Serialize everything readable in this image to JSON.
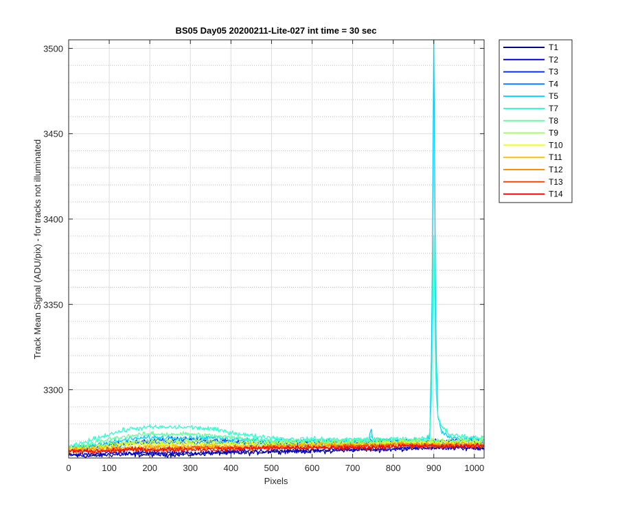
{
  "chart_data": {
    "type": "line",
    "title": "BS05 Day05 20200211-Lite-027 int time = 30 sec",
    "xlabel": "Pixels",
    "ylabel": "Track Mean Signal (ADU/pix) - for tracks not illuminated",
    "xlim": [
      0,
      1024
    ],
    "ylim": [
      3260,
      3505
    ],
    "xticks": [
      0,
      100,
      200,
      300,
      400,
      500,
      600,
      700,
      800,
      900,
      1000
    ],
    "yticks": [
      3300,
      3350,
      3400,
      3450,
      3500
    ],
    "grid": true,
    "minor_grid_y": true,
    "legend_position": "outside-top-right",
    "x_profile": [
      0,
      50,
      100,
      150,
      200,
      250,
      300,
      350,
      400,
      450,
      500,
      550,
      600,
      650,
      700,
      740,
      745,
      750,
      800,
      850,
      880,
      890,
      895,
      900,
      905,
      910,
      920,
      940,
      960,
      1000,
      1024
    ],
    "series": [
      {
        "name": "T1",
        "color": "#00008F",
        "values": [
          3262,
          3261,
          3262,
          3262,
          3262,
          3262,
          3262,
          3263,
          3263,
          3263,
          3264,
          3264,
          3264,
          3264,
          3265,
          3265,
          3265,
          3265,
          3265,
          3266,
          3266,
          3266,
          3266,
          3266,
          3266,
          3266,
          3266,
          3266,
          3266,
          3266,
          3266
        ]
      },
      {
        "name": "T2",
        "color": "#0000DF",
        "values": [
          3262,
          3262,
          3263,
          3263,
          3263,
          3263,
          3263,
          3263,
          3264,
          3264,
          3264,
          3264,
          3264,
          3265,
          3265,
          3265,
          3265,
          3265,
          3265,
          3266,
          3266,
          3266,
          3266,
          3266,
          3266,
          3266,
          3266,
          3266,
          3266,
          3266,
          3266
        ]
      },
      {
        "name": "T3",
        "color": "#0030FF",
        "values": [
          3266,
          3267,
          3268,
          3269,
          3270,
          3271,
          3271,
          3270,
          3270,
          3269,
          3269,
          3269,
          3269,
          3269,
          3269,
          3269,
          3270,
          3270,
          3270,
          3270,
          3270,
          3270,
          3270,
          3270,
          3270,
          3270,
          3270,
          3270,
          3270,
          3270,
          3270
        ]
      },
      {
        "name": "T4",
        "color": "#0080FF",
        "values": [
          3265,
          3266,
          3267,
          3268,
          3269,
          3269,
          3269,
          3269,
          3269,
          3268,
          3268,
          3268,
          3268,
          3268,
          3268,
          3268,
          3270,
          3268,
          3268,
          3268,
          3268,
          3268,
          3268,
          3268,
          3268,
          3268,
          3268,
          3268,
          3268,
          3268,
          3268
        ]
      },
      {
        "name": "T5",
        "color": "#00CFFF",
        "values": [
          3265,
          3267,
          3269,
          3271,
          3272,
          3272,
          3272,
          3272,
          3271,
          3271,
          3270,
          3270,
          3270,
          3270,
          3270,
          3270,
          3277,
          3271,
          3270,
          3270,
          3270,
          3272,
          3330,
          3505,
          3330,
          3285,
          3275,
          3272,
          3271,
          3271,
          3271
        ]
      },
      {
        "name": "T7",
        "color": "#30FFCF",
        "values": [
          3266,
          3270,
          3274,
          3277,
          3278,
          3278,
          3278,
          3277,
          3275,
          3273,
          3272,
          3271,
          3271,
          3271,
          3271,
          3271,
          3272,
          3271,
          3271,
          3271,
          3272,
          3274,
          3300,
          3390,
          3300,
          3285,
          3278,
          3274,
          3273,
          3272,
          3272
        ]
      },
      {
        "name": "T8",
        "color": "#60FF9F",
        "values": [
          3265,
          3268,
          3271,
          3273,
          3274,
          3274,
          3274,
          3273,
          3272,
          3271,
          3270,
          3270,
          3270,
          3270,
          3270,
          3270,
          3270,
          3270,
          3270,
          3270,
          3270,
          3270,
          3270,
          3270,
          3270,
          3270,
          3270,
          3270,
          3270,
          3270,
          3270
        ]
      },
      {
        "name": "T9",
        "color": "#9FFF60",
        "values": [
          3265,
          3266,
          3268,
          3269,
          3270,
          3270,
          3270,
          3270,
          3269,
          3269,
          3269,
          3269,
          3269,
          3269,
          3269,
          3269,
          3269,
          3269,
          3269,
          3270,
          3270,
          3270,
          3270,
          3270,
          3270,
          3270,
          3270,
          3270,
          3270,
          3270,
          3270
        ]
      },
      {
        "name": "T10",
        "color": "#EFFF10",
        "values": [
          3265,
          3266,
          3267,
          3268,
          3268,
          3268,
          3268,
          3268,
          3268,
          3268,
          3268,
          3268,
          3268,
          3268,
          3268,
          3268,
          3268,
          3268,
          3269,
          3269,
          3269,
          3269,
          3269,
          3269,
          3269,
          3269,
          3269,
          3269,
          3269,
          3269,
          3269
        ]
      },
      {
        "name": "T11",
        "color": "#FFBF00",
        "values": [
          3265,
          3265,
          3266,
          3266,
          3267,
          3267,
          3267,
          3267,
          3267,
          3267,
          3267,
          3267,
          3268,
          3268,
          3268,
          3268,
          3268,
          3268,
          3268,
          3268,
          3268,
          3268,
          3268,
          3268,
          3268,
          3268,
          3268,
          3268,
          3268,
          3268,
          3268
        ]
      },
      {
        "name": "T12",
        "color": "#FF8F00",
        "values": [
          3264,
          3265,
          3265,
          3265,
          3266,
          3266,
          3266,
          3266,
          3266,
          3266,
          3267,
          3267,
          3267,
          3267,
          3267,
          3267,
          3267,
          3267,
          3268,
          3268,
          3268,
          3268,
          3268,
          3268,
          3268,
          3268,
          3268,
          3268,
          3268,
          3268,
          3268
        ]
      },
      {
        "name": "T13",
        "color": "#FF4000",
        "values": [
          3264,
          3264,
          3265,
          3265,
          3265,
          3265,
          3266,
          3266,
          3266,
          3266,
          3266,
          3266,
          3266,
          3266,
          3267,
          3267,
          3267,
          3267,
          3267,
          3267,
          3267,
          3267,
          3267,
          3267,
          3267,
          3267,
          3267,
          3267,
          3267,
          3267,
          3267
        ]
      },
      {
        "name": "T14",
        "color": "#FF0000",
        "values": [
          3264,
          3264,
          3264,
          3265,
          3265,
          3265,
          3265,
          3265,
          3265,
          3266,
          3266,
          3266,
          3266,
          3266,
          3266,
          3266,
          3266,
          3266,
          3267,
          3267,
          3267,
          3267,
          3267,
          3267,
          3267,
          3267,
          3267,
          3267,
          3267,
          3267,
          3267
        ]
      }
    ]
  }
}
